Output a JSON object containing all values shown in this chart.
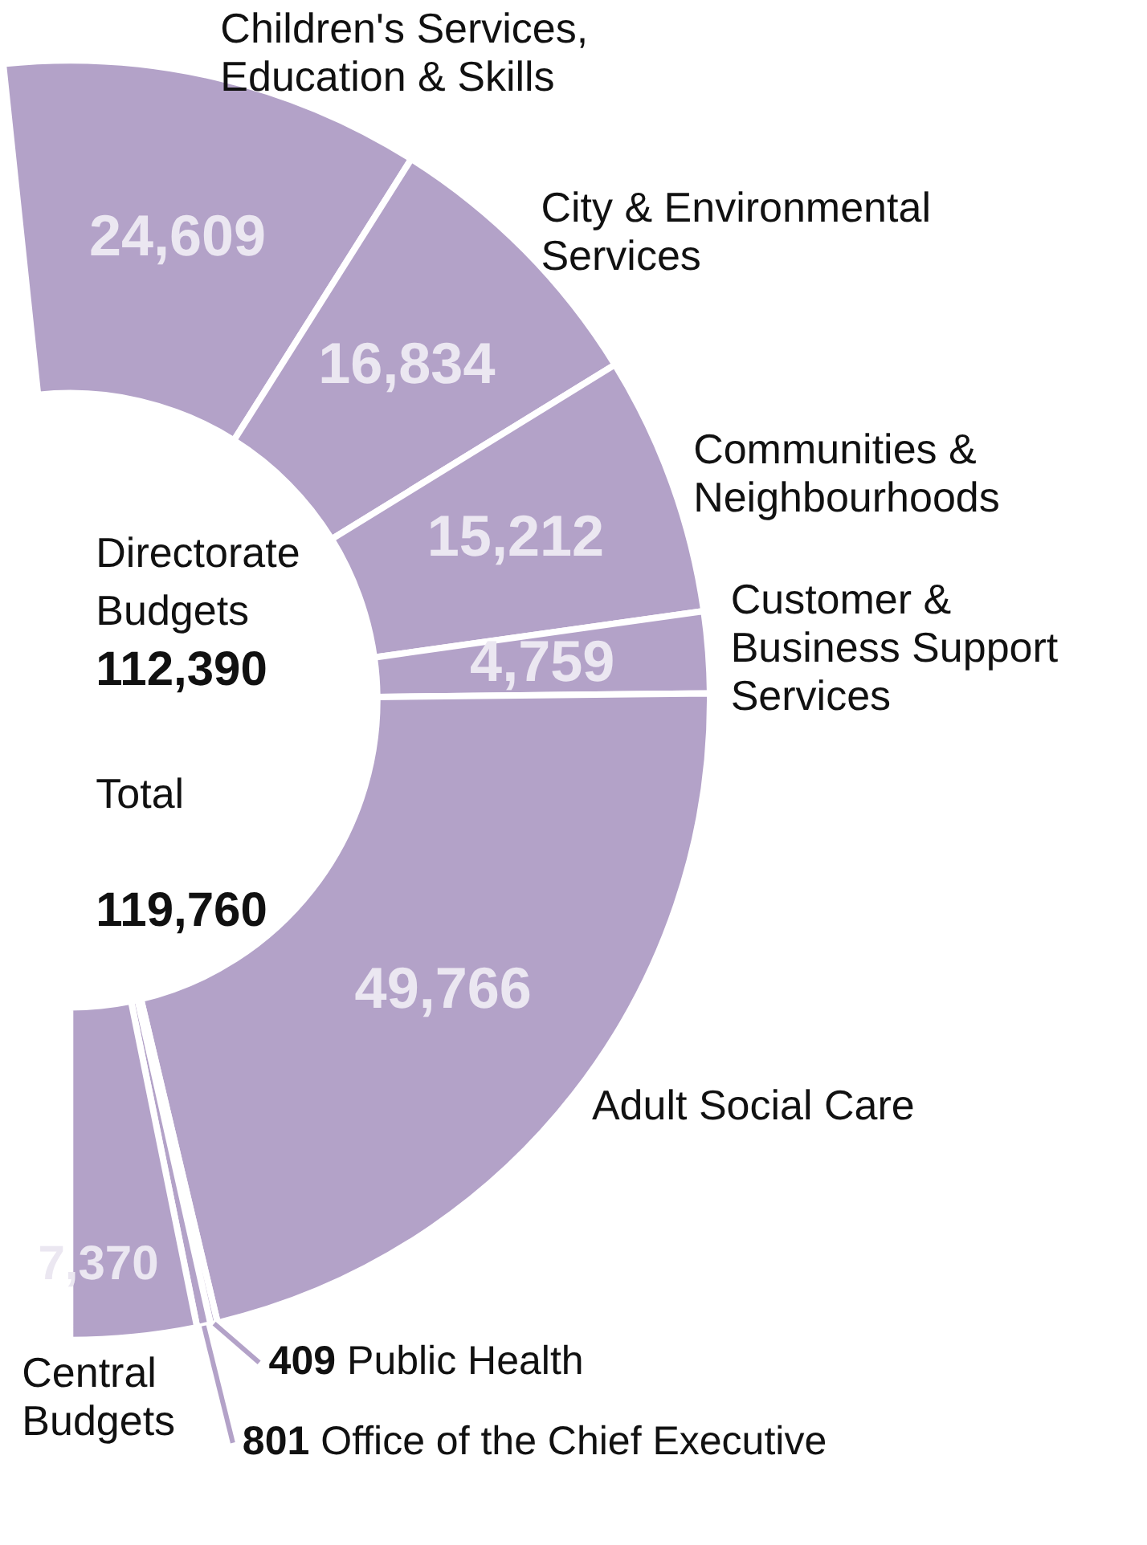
{
  "chart_data": {
    "type": "donut",
    "categories": [
      "Children's Services, Education & Skills",
      "City & Environmental Services",
      "Communities & Neighbourhoods",
      "Customer & Business Support Services",
      "Adult Social Care",
      "Public Health",
      "Office of the Chief Executive",
      "Central Budgets"
    ],
    "values": [
      24609,
      16834,
      15212,
      4759,
      49766,
      409,
      801,
      7370
    ],
    "colors": [
      "#b3a2c8",
      "#b3a2c8",
      "#b3a2c8",
      "#b3a2c8",
      "#b3a2c8",
      "#b3a2c8",
      "#b3a2c8",
      "#b3a2c8"
    ],
    "value_labels": [
      "24,609",
      "16,834",
      "15,212",
      "4,759",
      "49,766",
      "409",
      "801",
      "7,370"
    ],
    "legend": false,
    "annotations": [
      "Directorate Budgets",
      "112,390",
      "Total",
      "119,760"
    ]
  }
}
